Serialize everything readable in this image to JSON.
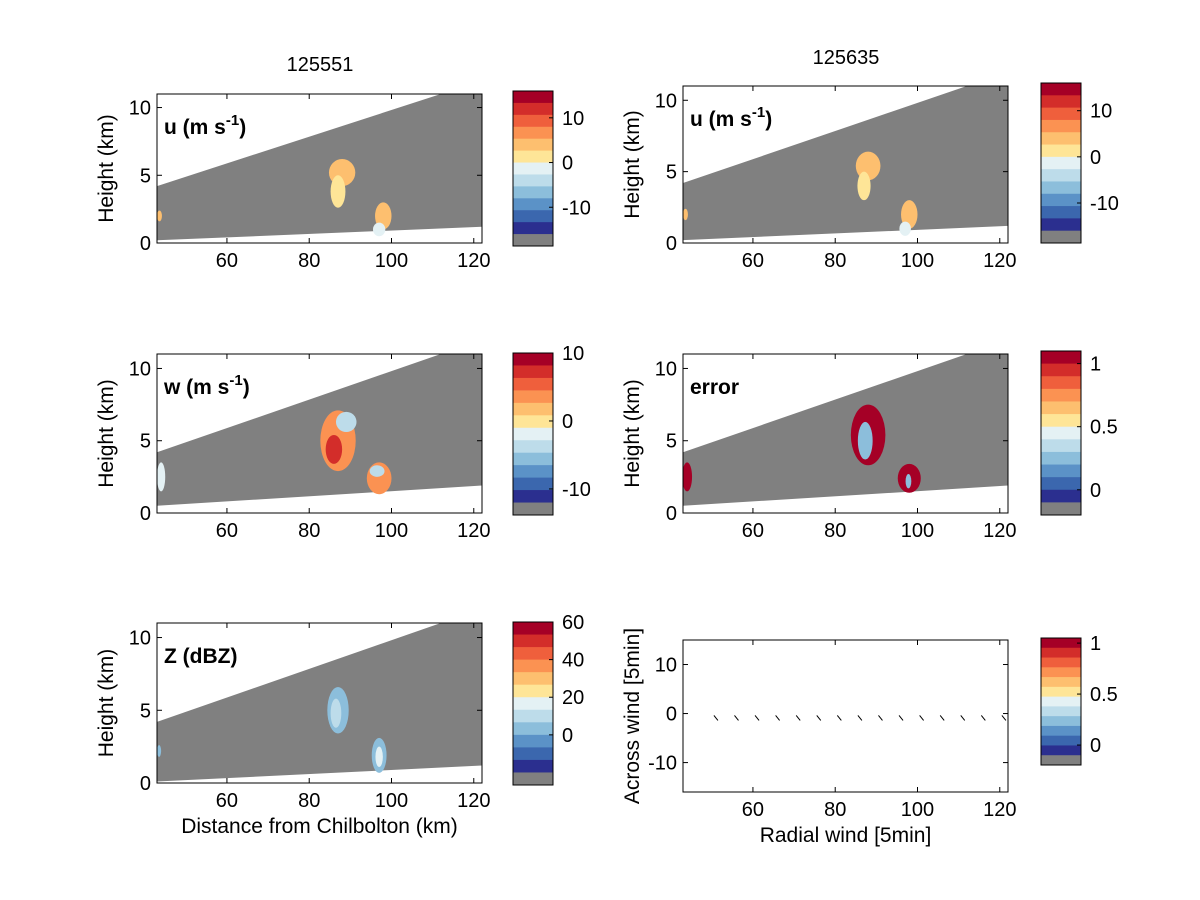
{
  "colors": {
    "missing": "#808080",
    "palette": [
      "#2b2f8f",
      "#3b67ae",
      "#5b92c7",
      "#8cbedb",
      "#bddcea",
      "#e4f1f4",
      "#fee597",
      "#fdbf6f",
      "#fb9252",
      "#ef5f3c",
      "#d32d2a",
      "#a50026"
    ]
  },
  "chart_data": [
    {
      "type": "heatmap",
      "time_title": "125551",
      "panel_label": "u (m s",
      "label_exponent": "-1",
      "label_close": ")",
      "ylabel": "Height (km)",
      "xlabel": "",
      "xlim": [
        43,
        122
      ],
      "ylim": [
        0,
        11
      ],
      "xticks": [
        "60",
        "80",
        "100",
        "120"
      ],
      "yticks": [
        "0",
        "5",
        "10"
      ],
      "colorbar": {
        "range": [
          -16,
          16
        ],
        "ticks": [
          {
            "v": 10,
            "label": "10"
          },
          {
            "v": 0,
            "label": "0"
          },
          {
            "v": -10,
            "label": "-10"
          }
        ]
      },
      "scan_wedge": {
        "top": [
          [
            43,
            4.2
          ],
          [
            112,
            11
          ]
        ],
        "bottom": [
          [
            43,
            0.2
          ],
          [
            122,
            1.2
          ]
        ]
      },
      "features": [
        {
          "x": 88,
          "y": 5.2,
          "rx": 3.2,
          "ry": 1.0,
          "value": 3
        },
        {
          "x": 87,
          "y": 3.8,
          "rx": 1.8,
          "ry": 1.2,
          "value": 1
        },
        {
          "x": 98,
          "y": 2.0,
          "rx": 2.0,
          "ry": 1.0,
          "value": 3
        },
        {
          "x": 97,
          "y": 1.0,
          "rx": 1.5,
          "ry": 0.5,
          "value": -1
        },
        {
          "x": 43.6,
          "y": 2.0,
          "rx": 0.6,
          "ry": 0.4,
          "value": 3
        }
      ]
    },
    {
      "type": "heatmap",
      "time_title": "125635",
      "panel_label": "u (m s",
      "label_exponent": "-1",
      "label_close": ")",
      "ylabel": "Height (km)",
      "xlabel": "",
      "xlim": [
        43,
        122
      ],
      "ylim": [
        0,
        11
      ],
      "xticks": [
        "60",
        "80",
        "100",
        "120"
      ],
      "yticks": [
        "0",
        "5",
        "10"
      ],
      "colorbar": {
        "range": [
          -16,
          16
        ],
        "ticks": [
          {
            "v": 10,
            "label": "10"
          },
          {
            "v": 0,
            "label": "0"
          },
          {
            "v": -10,
            "label": "-10"
          }
        ]
      },
      "scan_wedge": {
        "top": [
          [
            43,
            4.2
          ],
          [
            112,
            11
          ]
        ],
        "bottom": [
          [
            43,
            0.2
          ],
          [
            122,
            1.2
          ]
        ]
      },
      "features": [
        {
          "x": 88,
          "y": 5.4,
          "rx": 3.0,
          "ry": 1.0,
          "value": 3
        },
        {
          "x": 87,
          "y": 4.0,
          "rx": 1.6,
          "ry": 1.0,
          "value": 1
        },
        {
          "x": 98,
          "y": 2.0,
          "rx": 2.0,
          "ry": 1.0,
          "value": 3
        },
        {
          "x": 97,
          "y": 1.0,
          "rx": 1.4,
          "ry": 0.5,
          "value": -1
        },
        {
          "x": 43.6,
          "y": 2.0,
          "rx": 0.6,
          "ry": 0.4,
          "value": 3
        }
      ]
    },
    {
      "type": "heatmap",
      "panel_label": "w (m s",
      "label_exponent": "-1",
      "label_close": ")",
      "ylabel": "Height (km)",
      "xlabel": "",
      "xlim": [
        43,
        122
      ],
      "ylim": [
        0,
        11
      ],
      "xticks": [
        "60",
        "80",
        "100",
        "120"
      ],
      "yticks": [
        "0",
        "5",
        "10"
      ],
      "colorbar": {
        "range": [
          -12,
          10
        ],
        "ticks": [
          {
            "v": 10,
            "label": "10"
          },
          {
            "v": 0,
            "label": "0"
          },
          {
            "v": -10,
            "label": "-10"
          }
        ]
      },
      "scan_wedge": {
        "top": [
          [
            43,
            4.2
          ],
          [
            112,
            11
          ]
        ],
        "bottom": [
          [
            43,
            0.5
          ],
          [
            122,
            1.9
          ]
        ]
      },
      "features": [
        {
          "x": 87,
          "y": 5.0,
          "rx": 4.3,
          "ry": 2.1,
          "value": 4
        },
        {
          "x": 89,
          "y": 6.3,
          "rx": 2.5,
          "ry": 0.7,
          "value": -3
        },
        {
          "x": 86,
          "y": 4.4,
          "rx": 2.0,
          "ry": 1.0,
          "value": 7
        },
        {
          "x": 97,
          "y": 2.4,
          "rx": 3.0,
          "ry": 1.1,
          "value": 3
        },
        {
          "x": 96.5,
          "y": 2.9,
          "rx": 1.8,
          "ry": 0.4,
          "value": -4
        },
        {
          "x": 44,
          "y": 2.5,
          "rx": 1.0,
          "ry": 1.0,
          "value": -2
        }
      ]
    },
    {
      "type": "heatmap",
      "panel_label": "error",
      "label_exponent": "",
      "label_close": "",
      "ylabel": "Height (km)",
      "xlabel": "",
      "xlim": [
        43,
        122
      ],
      "ylim": [
        0,
        11
      ],
      "xticks": [
        "60",
        "80",
        "100",
        "120"
      ],
      "yticks": [
        "0",
        "5",
        "10"
      ],
      "colorbar": {
        "range": [
          -0.1,
          1.1
        ],
        "ticks": [
          {
            "v": 1,
            "label": "1"
          },
          {
            "v": 0.5,
            "label": "0.5"
          },
          {
            "v": 0,
            "label": "0"
          }
        ]
      },
      "scan_wedge": {
        "top": [
          [
            43,
            4.2
          ],
          [
            112,
            11
          ]
        ],
        "bottom": [
          [
            43,
            0.5
          ],
          [
            122,
            1.9
          ]
        ]
      },
      "features": [
        {
          "x": 88,
          "y": 5.4,
          "rx": 4.2,
          "ry": 2.1,
          "value": 1.05
        },
        {
          "x": 87.3,
          "y": 5.0,
          "rx": 1.8,
          "ry": 1.3,
          "value": 0.2
        },
        {
          "x": 98,
          "y": 2.4,
          "rx": 2.8,
          "ry": 1.0,
          "value": 1.05
        },
        {
          "x": 97.8,
          "y": 2.2,
          "rx": 0.7,
          "ry": 0.5,
          "value": 0.2
        },
        {
          "x": 44,
          "y": 2.5,
          "rx": 1.2,
          "ry": 1.0,
          "value": 1.05
        }
      ]
    },
    {
      "type": "heatmap",
      "panel_label": "Z (dBZ)",
      "label_exponent": "",
      "label_close": "",
      "ylabel": "Height (km)",
      "xlabel": "Distance from Chilbolton (km)",
      "xlim": [
        43,
        122
      ],
      "ylim": [
        0,
        11
      ],
      "xticks": [
        "60",
        "80",
        "100",
        "120"
      ],
      "yticks": [
        "0",
        "5",
        "10"
      ],
      "colorbar": {
        "range": [
          -20,
          60
        ],
        "ticks": [
          {
            "v": 60,
            "label": "60"
          },
          {
            "v": 40,
            "label": "40"
          },
          {
            "v": 20,
            "label": "20"
          },
          {
            "v": 0,
            "label": "0"
          }
        ]
      },
      "scan_wedge": {
        "top": [
          [
            43,
            4.2
          ],
          [
            112,
            11
          ]
        ],
        "bottom": [
          [
            43,
            0.1
          ],
          [
            122,
            1.2
          ]
        ]
      },
      "features": [
        {
          "x": 87,
          "y": 5.0,
          "rx": 2.6,
          "ry": 1.6,
          "value": 5
        },
        {
          "x": 86.5,
          "y": 4.8,
          "rx": 1.3,
          "ry": 1.0,
          "value": 13
        },
        {
          "x": 97,
          "y": 1.9,
          "rx": 1.8,
          "ry": 1.2,
          "value": 5
        },
        {
          "x": 97,
          "y": 1.8,
          "rx": 0.9,
          "ry": 0.7,
          "value": 15
        },
        {
          "x": 43.5,
          "y": 2.2,
          "rx": 0.5,
          "ry": 0.4,
          "value": 0
        }
      ]
    },
    {
      "type": "scatter",
      "panel_label": "",
      "label_exponent": "",
      "label_close": "",
      "ylabel": "Across wind [5min]",
      "xlabel": "Radial wind [5min]",
      "xlim": [
        43,
        122
      ],
      "ylim": [
        -16,
        15
      ],
      "xticks": [
        "60",
        "80",
        "100",
        "120"
      ],
      "yticks": [
        "-10",
        "0",
        "10"
      ],
      "colorbar": {
        "range": [
          -0.1,
          1.05
        ],
        "ticks": [
          {
            "v": 1,
            "label": "1"
          },
          {
            "v": 0.5,
            "label": "0.5"
          },
          {
            "v": 0,
            "label": "0"
          }
        ]
      },
      "x": [
        51,
        56,
        61,
        66,
        71,
        76,
        81,
        86,
        91,
        96,
        101,
        106,
        111,
        116,
        121
      ],
      "y": [
        -0.8,
        -0.8,
        -0.8,
        -0.8,
        -0.8,
        -0.8,
        -0.8,
        -0.8,
        -0.8,
        -0.8,
        -0.8,
        -0.8,
        -0.8,
        -0.8,
        -0.8
      ]
    }
  ]
}
